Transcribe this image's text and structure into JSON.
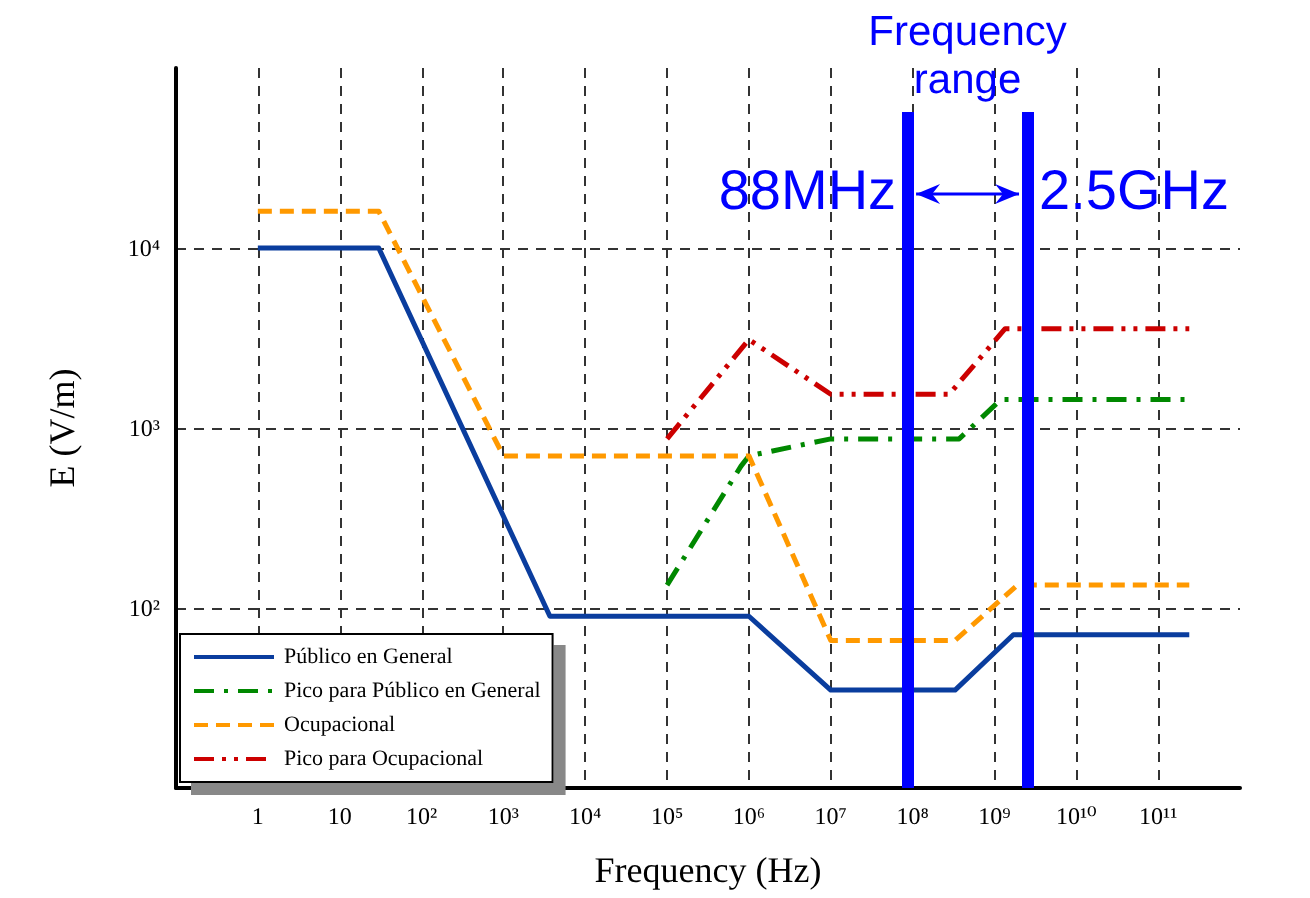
{
  "chart_data": {
    "type": "line",
    "xlabel": "Frequency (Hz)",
    "ylabel": "E (V/m)",
    "log": "xy",
    "grid": true,
    "legend": "bottom left",
    "marker": "none",
    "xlim": [
      0.1,
      1000000000000
    ],
    "ylim": [
      10,
      100000
    ],
    "xticks": [
      {
        "value": 1,
        "label": "1"
      },
      {
        "value": 10,
        "label": "10"
      },
      {
        "value": 100,
        "label": "10²"
      },
      {
        "value": 1000,
        "label": "10³"
      },
      {
        "value": 10000,
        "label": "10⁴"
      },
      {
        "value": 100000,
        "label": "10⁵"
      },
      {
        "value": 1000000,
        "label": "10⁶"
      },
      {
        "value": 10000000,
        "label": "10⁷"
      },
      {
        "value": 100000000,
        "label": "10⁸"
      },
      {
        "value": 1000000000,
        "label": "10⁹"
      },
      {
        "value": 10000000000,
        "label": "10¹⁰"
      },
      {
        "value": 100000000000,
        "label": "10¹¹"
      }
    ],
    "yticks": [
      {
        "value": 100,
        "label": "10²"
      },
      {
        "value": 1000,
        "label": "10³"
      },
      {
        "value": 10000,
        "label": "10⁴"
      }
    ],
    "series": [
      {
        "name": "Público en General",
        "color": "#0a3d9e",
        "line_style": "solid",
        "x": [
          1,
          30,
          3700,
          1000000,
          10000000,
          330000000,
          1700000000,
          240000000000
        ],
        "values": [
          10000,
          10000,
          90,
          90,
          35,
          35,
          71,
          71
        ]
      },
      {
        "name": "Pico para Público en General",
        "color": "#008800",
        "line_style": "dash-dot",
        "x": [
          100000,
          800000,
          1000000,
          10000000,
          370000000,
          1200000000,
          240000000000
        ],
        "values": [
          134,
          614,
          700,
          870,
          870,
          1440,
          1440
        ]
      },
      {
        "name": "Ocupacional",
        "color": "#ff9900",
        "line_style": "dashed",
        "x": [
          1,
          30,
          1000,
          1000000,
          10000000,
          330000000,
          1900000000,
          240000000000
        ],
        "values": [
          16000,
          16000,
          700,
          700,
          66,
          66,
          134,
          134
        ]
      },
      {
        "name": "Pico para Ocupacional",
        "color": "#cc0000",
        "line_style": "dash-dot-dot",
        "x": [
          100000,
          1000000,
          10000000,
          280000000,
          1350000000,
          240000000000
        ],
        "values": [
          870,
          3100,
          1540,
          1540,
          3560,
          3560
        ]
      }
    ],
    "ref_lines": [
      {
        "axis": "x",
        "value": 88000000,
        "label": "88MHz",
        "color": "#0000ff"
      },
      {
        "axis": "x",
        "value": 2500000000,
        "label": "2.5GHz",
        "color": "#0000ff"
      }
    ],
    "annotations": [
      "Frequency range"
    ]
  }
}
